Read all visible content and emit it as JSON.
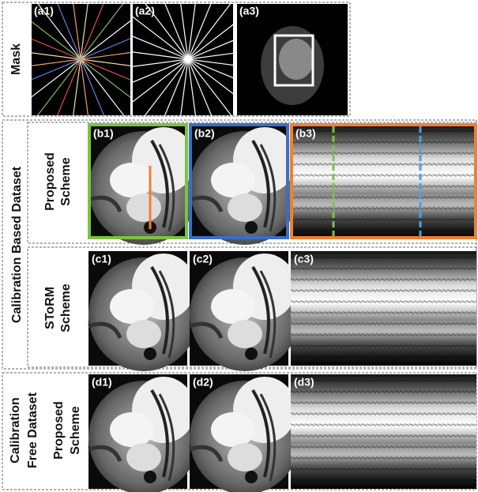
{
  "mask": {
    "label": "Mask",
    "panels": [
      "(a1)",
      "(a2)",
      "(a3)"
    ]
  },
  "calibration_based": {
    "label": "Calibration Based Dataset",
    "proposed": {
      "label": [
        "Proposed",
        "Scheme"
      ],
      "panels": [
        "(b1)",
        "(b2)",
        "(b3)"
      ]
    },
    "storm": {
      "label": [
        "SToRM",
        "Scheme"
      ],
      "panels": [
        "(c1)",
        "(c2)",
        "(c3)"
      ]
    }
  },
  "calibration_free": {
    "label": [
      "Calibration",
      "Free Dataset"
    ],
    "proposed": {
      "label": [
        "Proposed",
        "Scheme"
      ],
      "panels": [
        "(d1)",
        "(d2)",
        "(d3)"
      ]
    }
  }
}
